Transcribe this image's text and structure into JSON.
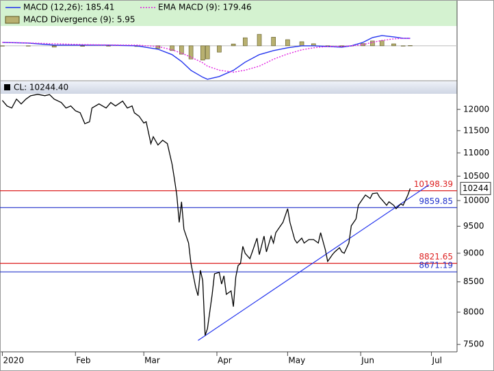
{
  "chart_data": [
    {
      "type": "line",
      "x": [
        0,
        11,
        22,
        34,
        45,
        57,
        66,
        72,
        76,
        80,
        85,
        87,
        92,
        98,
        103,
        109,
        115,
        121,
        127,
        132,
        138,
        144,
        148,
        153,
        157,
        161,
        166,
        170,
        173
      ],
      "xlim": [
        -1,
        192
      ],
      "ylim": [
        -860,
        1125
      ],
      "series": [
        {
          "name": "MACD Divergence (9): 5.95",
          "type": "bar",
          "color": "#b8b070",
          "values": [
            0,
            -3,
            -33,
            -13,
            -3,
            -17,
            -67,
            -117,
            -206,
            -325,
            -353,
            -323,
            -156,
            45,
            197,
            282,
            212,
            150,
            100,
            50,
            0,
            -17,
            0,
            54,
            118,
            122,
            48,
            0,
            5.95
          ]
        },
        {
          "name": "MACD (12,26): 185.41",
          "type": "line",
          "color": "#2233ee",
          "style": "solid",
          "values": [
            84,
            67,
            17,
            17,
            17,
            0,
            -84,
            -218,
            -386,
            -605,
            -773,
            -823,
            -756,
            -605,
            -403,
            -218,
            -118,
            -50,
            0,
            0,
            -17,
            -34,
            0,
            84,
            202,
            252,
            218,
            185,
            185.41
          ]
        },
        {
          "name": "EMA MACD (9): 179.46",
          "type": "line",
          "color": "#e020e0",
          "style": "dotted",
          "values": [
            84,
            70,
            50,
            30,
            20,
            17,
            -17,
            -101,
            -180,
            -280,
            -420,
            -500,
            -600,
            -650,
            -600,
            -500,
            -330,
            -200,
            -100,
            -50,
            -17,
            -17,
            0,
            30,
            84,
            130,
            170,
            185,
            179.46
          ]
        }
      ]
    },
    {
      "type": "line",
      "title": "CL: 10244.40",
      "log": true,
      "color": "#000000",
      "x": [
        0,
        2,
        4,
        6,
        8,
        10,
        12,
        15,
        18,
        20,
        22,
        25,
        27,
        29,
        31,
        33,
        35,
        37,
        38,
        41,
        44,
        46,
        48,
        51,
        53,
        55,
        56,
        58,
        60,
        61,
        63,
        64,
        66,
        68,
        70,
        72,
        73,
        74,
        75,
        76,
        77,
        79,
        80,
        82,
        83,
        84,
        85,
        86,
        87,
        89,
        90,
        92,
        93,
        94,
        95,
        97,
        98,
        99,
        100,
        101,
        102,
        103,
        105,
        106,
        108,
        109,
        111,
        112,
        114,
        115,
        116,
        118,
        119,
        121,
        122,
        124,
        125,
        127,
        128,
        130,
        132,
        134,
        135,
        137,
        138,
        140,
        141,
        143,
        144,
        145,
        147,
        148,
        150,
        151,
        153,
        154,
        156,
        157,
        159,
        160,
        161,
        163,
        164,
        166,
        167,
        169,
        170,
        172,
        173
      ],
      "values": [
        12216,
        12082,
        12033,
        12249,
        12132,
        12249,
        12333,
        12367,
        12333,
        12360,
        12249,
        12165,
        12033,
        12082,
        11967,
        11918,
        11660,
        11708,
        12033,
        12132,
        12033,
        12165,
        12082,
        12200,
        12033,
        12082,
        11918,
        11837,
        11676,
        11708,
        11206,
        11360,
        11175,
        11282,
        11206,
        10754,
        10435,
        10111,
        9573,
        9975,
        9442,
        9187,
        8818,
        8405,
        8268,
        8698,
        8520,
        7636,
        7741,
        8290,
        8638,
        8662,
        8462,
        8603,
        8290,
        8347,
        8088,
        8580,
        8782,
        8818,
        9125,
        9000,
        8903,
        9025,
        9276,
        8975,
        9314,
        9025,
        9314,
        9187,
        9378,
        9508,
        9573,
        9839,
        9573,
        9250,
        9187,
        9276,
        9187,
        9250,
        9250,
        9187,
        9378,
        9062,
        8854,
        8975,
        9025,
        9100,
        9025,
        9000,
        9187,
        9508,
        9638,
        9906,
        10043,
        10111,
        10043,
        10139,
        10153,
        10070,
        10016,
        9906,
        9975,
        9906,
        9839,
        9934,
        9906,
        10111,
        10244.4
      ],
      "xlim": [
        -1,
        192
      ],
      "ylim": [
        7400,
        12380
      ],
      "yticks": [
        7500,
        8000,
        8500,
        9000,
        9500,
        10000,
        10500,
        11000,
        11500,
        12000
      ],
      "xticks": [
        {
          "value": 0,
          "label": "2020"
        },
        {
          "value": 31,
          "label": "Feb"
        },
        {
          "value": 60,
          "label": "Mar"
        },
        {
          "value": 91,
          "label": "Apr"
        },
        {
          "value": 121,
          "label": "May"
        },
        {
          "value": 152,
          "label": "Jun"
        },
        {
          "value": 182,
          "label": "Jul"
        }
      ],
      "hlines": [
        {
          "value": 10198.39,
          "color": "#dd2222"
        },
        {
          "value": 9859.85,
          "color": "#2233cc"
        },
        {
          "value": 8821.65,
          "color": "#dd2222"
        },
        {
          "value": 8671.19,
          "color": "#2233cc"
        }
      ],
      "trendline": {
        "x": [
          83,
          181
        ],
        "values": [
          7560,
          10320
        ],
        "color": "#2233ee"
      },
      "last_price": {
        "value": 10244.4,
        "label": "10244"
      }
    }
  ]
}
